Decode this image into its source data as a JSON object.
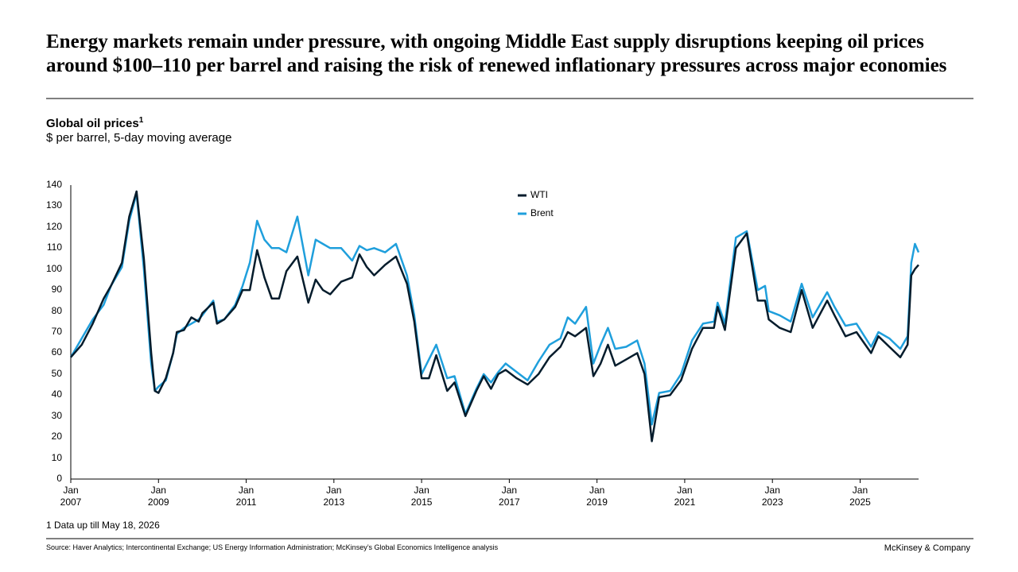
{
  "header": {
    "title": "Energy markets remain under pressure, with ongoing Middle East supply disruptions keeping oil prices around $100–110 per barrel and raising the risk of renewed inflationary pressures across major economies"
  },
  "chart_data": {
    "type": "line",
    "title": "Global oil prices",
    "title_note": "1",
    "subtitle": "$ per barrel, 5-day moving average",
    "x": [
      "2007-01",
      "2007-04",
      "2007-07",
      "2007-10",
      "2007-12",
      "2008-03",
      "2008-05",
      "2008-07",
      "2008-09",
      "2008-11",
      "2008-12",
      "2009-01",
      "2009-03",
      "2009-05",
      "2009-06",
      "2009-08",
      "2009-10",
      "2009-12",
      "2010-01",
      "2010-04",
      "2010-05",
      "2010-07",
      "2010-10",
      "2010-12",
      "2011-02",
      "2011-04",
      "2011-06",
      "2011-08",
      "2011-10",
      "2011-12",
      "2012-03",
      "2012-06",
      "2012-08",
      "2012-10",
      "2012-12",
      "2013-03",
      "2013-06",
      "2013-08",
      "2013-10",
      "2013-12",
      "2014-03",
      "2014-06",
      "2014-09",
      "2014-11",
      "2015-01",
      "2015-03",
      "2015-05",
      "2015-08",
      "2015-10",
      "2016-01",
      "2016-04",
      "2016-06",
      "2016-08",
      "2016-10",
      "2016-12",
      "2017-03",
      "2017-06",
      "2017-09",
      "2017-12",
      "2018-03",
      "2018-05",
      "2018-07",
      "2018-10",
      "2018-12",
      "2019-02",
      "2019-04",
      "2019-06",
      "2019-09",
      "2019-12",
      "2020-02",
      "2020-04",
      "2020-06",
      "2020-09",
      "2020-12",
      "2021-03",
      "2021-06",
      "2021-09",
      "2021-10",
      "2021-12",
      "2022-03",
      "2022-06",
      "2022-09",
      "2022-11",
      "2022-12",
      "2023-03",
      "2023-06",
      "2023-09",
      "2023-12",
      "2024-04",
      "2024-06",
      "2024-09",
      "2024-12",
      "2025-04",
      "2025-06",
      "2025-09",
      "2025-12",
      "2026-02",
      "2026-03",
      "2026-04",
      "2026-05"
    ],
    "series": [
      {
        "name": "WTI",
        "color": "#051c2c",
        "values": [
          58,
          64,
          74,
          86,
          92,
          103,
          125,
          137,
          105,
          60,
          42,
          41,
          48,
          60,
          70,
          71,
          77,
          75,
          79,
          84,
          74,
          76,
          82,
          90,
          90,
          109,
          96,
          86,
          86,
          99,
          106,
          84,
          95,
          90,
          88,
          94,
          96,
          107,
          101,
          97,
          102,
          106,
          93,
          75,
          48,
          48,
          59,
          42,
          46,
          30,
          42,
          49,
          43,
          50,
          52,
          48,
          45,
          50,
          58,
          63,
          70,
          68,
          72,
          49,
          55,
          64,
          54,
          57,
          60,
          50,
          18,
          39,
          40,
          47,
          62,
          72,
          72,
          82,
          71,
          110,
          117,
          85,
          85,
          76,
          72,
          70,
          90,
          72,
          85,
          78,
          68,
          70,
          60,
          68,
          63,
          58,
          64,
          97,
          100,
          102
        ]
      },
      {
        "name": "Brent",
        "color": "#1f9fdc",
        "values": [
          58,
          67,
          76,
          83,
          92,
          101,
          123,
          136,
          100,
          55,
          42,
          44,
          47,
          60,
          69,
          72,
          74,
          76,
          78,
          85,
          75,
          76,
          83,
          92,
          103,
          123,
          114,
          110,
          110,
          108,
          125,
          97,
          114,
          112,
          110,
          110,
          104,
          111,
          109,
          110,
          108,
          112,
          97,
          78,
          50,
          57,
          64,
          48,
          49,
          31,
          43,
          50,
          46,
          51,
          55,
          51,
          47,
          56,
          64,
          67,
          77,
          74,
          82,
          55,
          64,
          72,
          62,
          63,
          66,
          55,
          26,
          41,
          42,
          50,
          66,
          74,
          75,
          84,
          74,
          115,
          118,
          90,
          92,
          80,
          78,
          75,
          93,
          77,
          89,
          82,
          73,
          74,
          63,
          70,
          67,
          62,
          68,
          103,
          112,
          108
        ]
      }
    ],
    "xlim": [
      "2007-01",
      "2026-05"
    ],
    "xticks": [
      {
        "value": "2007-01",
        "label": "Jan\n2007"
      },
      {
        "value": "2009-01",
        "label": "Jan\n2009"
      },
      {
        "value": "2011-01",
        "label": "Jan\n2011"
      },
      {
        "value": "2013-01",
        "label": "Jan\n2013"
      },
      {
        "value": "2015-01",
        "label": "Jan\n2015"
      },
      {
        "value": "2017-01",
        "label": "Jan\n2017"
      },
      {
        "value": "2019-01",
        "label": "Jan\n2019"
      },
      {
        "value": "2021-01",
        "label": "Jan\n2021"
      },
      {
        "value": "2023-01",
        "label": "Jan\n2023"
      },
      {
        "value": "2025-01",
        "label": "Jan\n2025"
      }
    ],
    "ylim": [
      0,
      140
    ],
    "yticks": [
      0,
      10,
      20,
      30,
      40,
      50,
      60,
      70,
      80,
      90,
      100,
      110,
      120,
      130,
      140
    ],
    "grid": false,
    "footnote": "1 Data up till May 18, 2026"
  },
  "footer": {
    "source": "Source: Haver Analytics; Intercontinental Exchange; US Energy Information Administration; McKinsey’s Global Economics Intelligence analysis",
    "brand": "McKinsey & Company"
  }
}
